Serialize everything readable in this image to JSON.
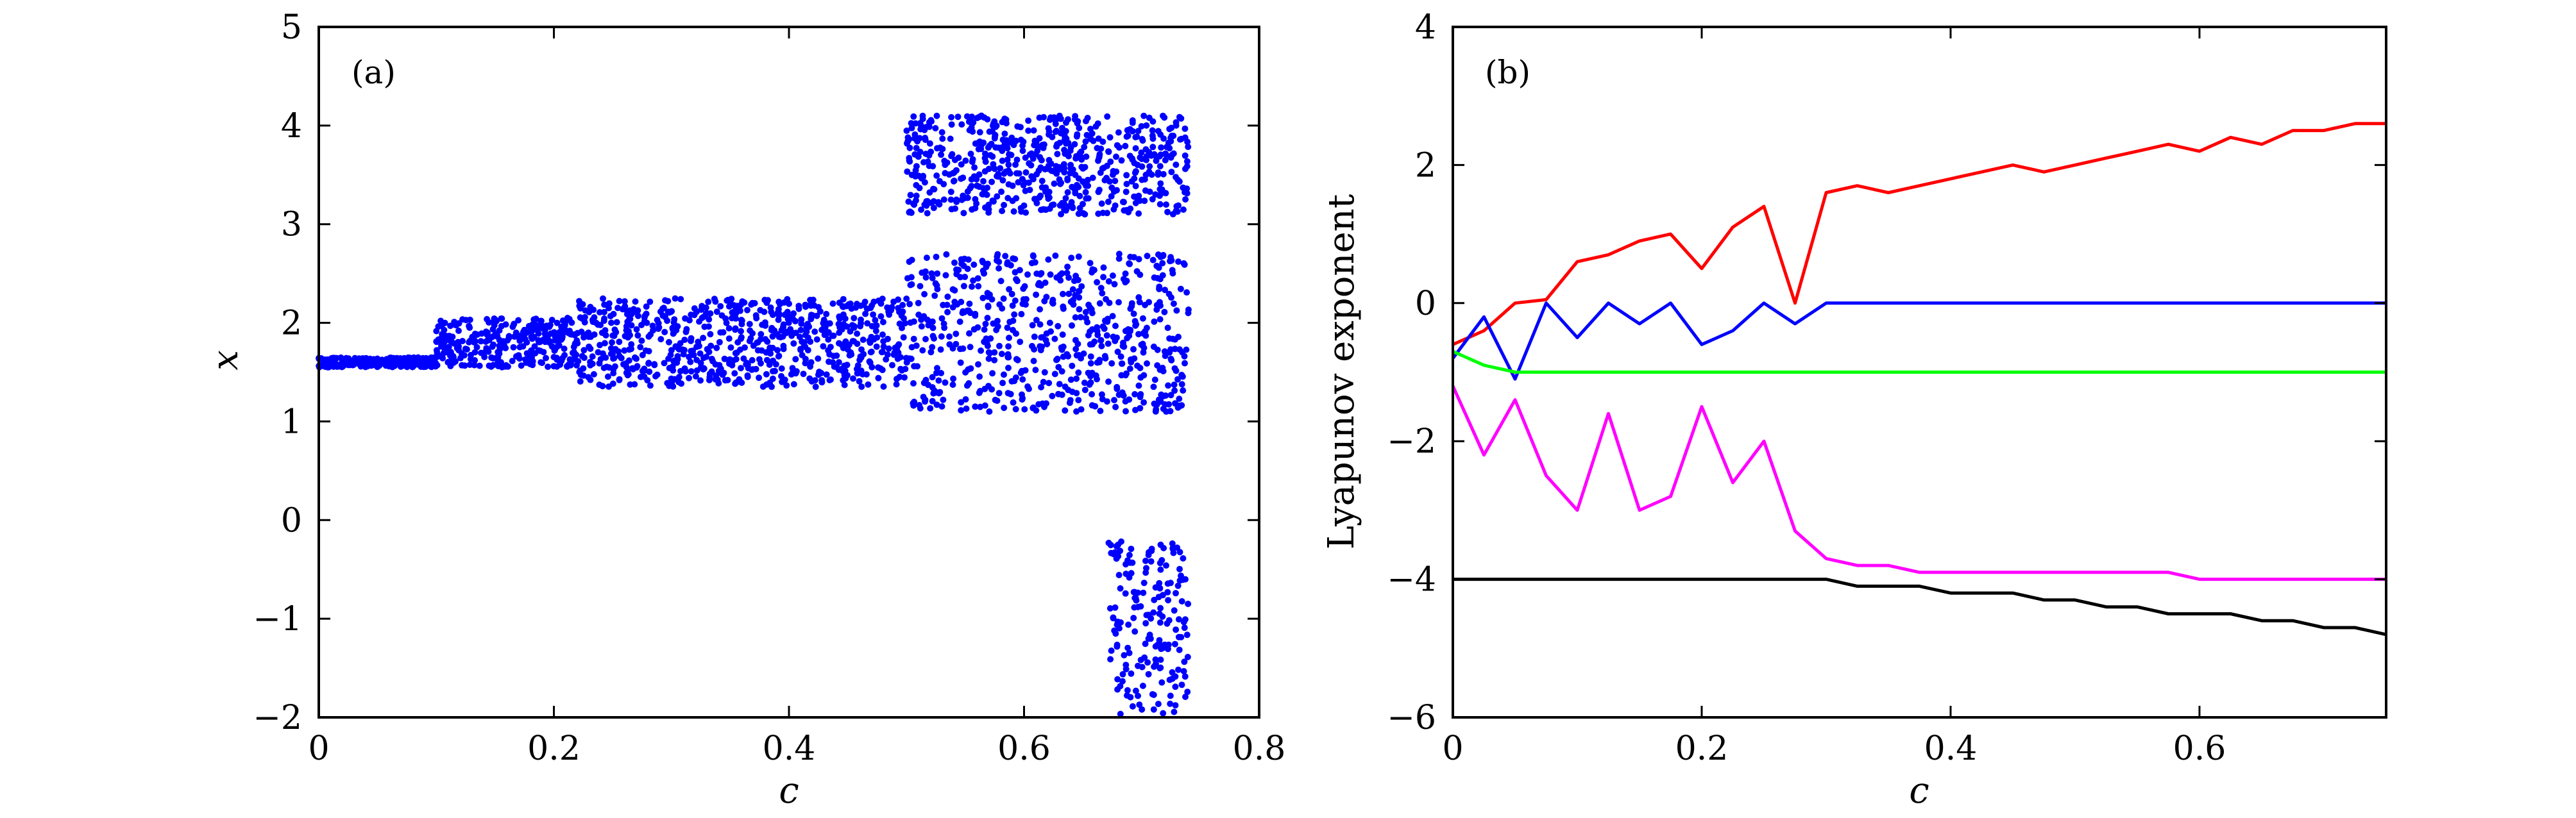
{
  "chart_data": [
    {
      "type": "scatter",
      "panel_label": "(a)",
      "xlabel": "c",
      "ylabel": "x",
      "xlim": [
        0,
        0.8
      ],
      "ylim": [
        -2,
        5
      ],
      "xticks": [
        0,
        0.2,
        0.4,
        0.6,
        0.8
      ],
      "xtick_labels": [
        "0",
        "0.2",
        "0.4",
        "0.6",
        "0.8"
      ],
      "yticks": [
        -2,
        -1,
        0,
        1,
        2,
        3,
        4,
        5
      ],
      "ytick_labels": [
        "−2",
        "−1",
        "0",
        "1",
        "2",
        "3",
        "4",
        "5"
      ],
      "grid": false,
      "marker_color": "#0000ff",
      "description_of_bands": [
        {
          "c_range": [
            0.0,
            0.1
          ],
          "x_range": [
            1.55,
            1.65
          ]
        },
        {
          "c_range": [
            0.1,
            0.22
          ],
          "x_range": [
            1.55,
            2.05
          ]
        },
        {
          "c_range": [
            0.22,
            0.5
          ],
          "x_range": [
            1.35,
            2.25
          ]
        },
        {
          "c_range": [
            0.5,
            0.74
          ],
          "x_range": [
            1.1,
            2.7
          ]
        },
        {
          "c_range": [
            0.5,
            0.74
          ],
          "x_range": [
            3.1,
            4.1
          ]
        },
        {
          "c_range": [
            0.67,
            0.74
          ],
          "x_range": [
            -2.0,
            -0.2
          ]
        }
      ]
    },
    {
      "type": "line",
      "panel_label": "(b)",
      "xlabel": "c",
      "ylabel": "Lyapunov exponent",
      "xlim": [
        0,
        0.75
      ],
      "ylim": [
        -6,
        4
      ],
      "xticks": [
        0,
        0.2,
        0.4,
        0.6
      ],
      "xtick_labels": [
        "0",
        "0.2",
        "0.4",
        "0.6"
      ],
      "yticks": [
        -6,
        -4,
        -2,
        0,
        2,
        4
      ],
      "ytick_labels": [
        "−6",
        "−4",
        "−2",
        "0",
        "2",
        "4"
      ],
      "grid": false,
      "x": [
        0,
        0.025,
        0.05,
        0.075,
        0.1,
        0.125,
        0.15,
        0.175,
        0.2,
        0.225,
        0.25,
        0.275,
        0.3,
        0.325,
        0.35,
        0.375,
        0.4,
        0.425,
        0.45,
        0.475,
        0.5,
        0.525,
        0.55,
        0.575,
        0.6,
        0.625,
        0.65,
        0.675,
        0.7,
        0.725,
        0.75
      ],
      "series": [
        {
          "color": "#ff0000",
          "values": [
            -0.6,
            -0.4,
            0.0,
            0.05,
            0.6,
            0.7,
            0.9,
            1.0,
            0.5,
            1.1,
            1.4,
            0.0,
            1.6,
            1.7,
            1.6,
            1.7,
            1.8,
            1.9,
            2.0,
            1.9,
            2.0,
            2.1,
            2.2,
            2.3,
            2.2,
            2.4,
            2.3,
            2.5,
            2.5,
            2.6,
            2.6
          ]
        },
        {
          "color": "#0000ff",
          "values": [
            -0.8,
            -0.2,
            -1.1,
            0.0,
            -0.5,
            0.0,
            -0.3,
            0.0,
            -0.6,
            -0.4,
            0.0,
            -0.3,
            0.0,
            0.0,
            0.0,
            0.0,
            0.0,
            0.0,
            0.0,
            0.0,
            0.0,
            0.0,
            0.0,
            0.0,
            0.0,
            0.0,
            0.0,
            0.0,
            0.0,
            0.0,
            0.0
          ]
        },
        {
          "color": "#00ff00",
          "values": [
            -0.7,
            -0.9,
            -1.0,
            -1.0,
            -1.0,
            -1.0,
            -1.0,
            -1.0,
            -1.0,
            -1.0,
            -1.0,
            -1.0,
            -1.0,
            -1.0,
            -1.0,
            -1.0,
            -1.0,
            -1.0,
            -1.0,
            -1.0,
            -1.0,
            -1.0,
            -1.0,
            -1.0,
            -1.0,
            -1.0,
            -1.0,
            -1.0,
            -1.0,
            -1.0,
            -1.0
          ]
        },
        {
          "color": "#ff00ff",
          "values": [
            -1.2,
            -2.2,
            -1.4,
            -2.5,
            -3.0,
            -1.6,
            -3.0,
            -2.8,
            -1.5,
            -2.6,
            -2.0,
            -3.3,
            -3.7,
            -3.8,
            -3.8,
            -3.9,
            -3.9,
            -3.9,
            -3.9,
            -3.9,
            -3.9,
            -3.9,
            -3.9,
            -3.9,
            -4.0,
            -4.0,
            -4.0,
            -4.0,
            -4.0,
            -4.0,
            -4.0
          ]
        },
        {
          "color": "#000000",
          "values": [
            -4.0,
            -4.0,
            -4.0,
            -4.0,
            -4.0,
            -4.0,
            -4.0,
            -4.0,
            -4.0,
            -4.0,
            -4.0,
            -4.0,
            -4.0,
            -4.1,
            -4.1,
            -4.1,
            -4.2,
            -4.2,
            -4.2,
            -4.3,
            -4.3,
            -4.4,
            -4.4,
            -4.5,
            -4.5,
            -4.5,
            -4.6,
            -4.6,
            -4.7,
            -4.7,
            -4.8
          ]
        }
      ]
    }
  ]
}
